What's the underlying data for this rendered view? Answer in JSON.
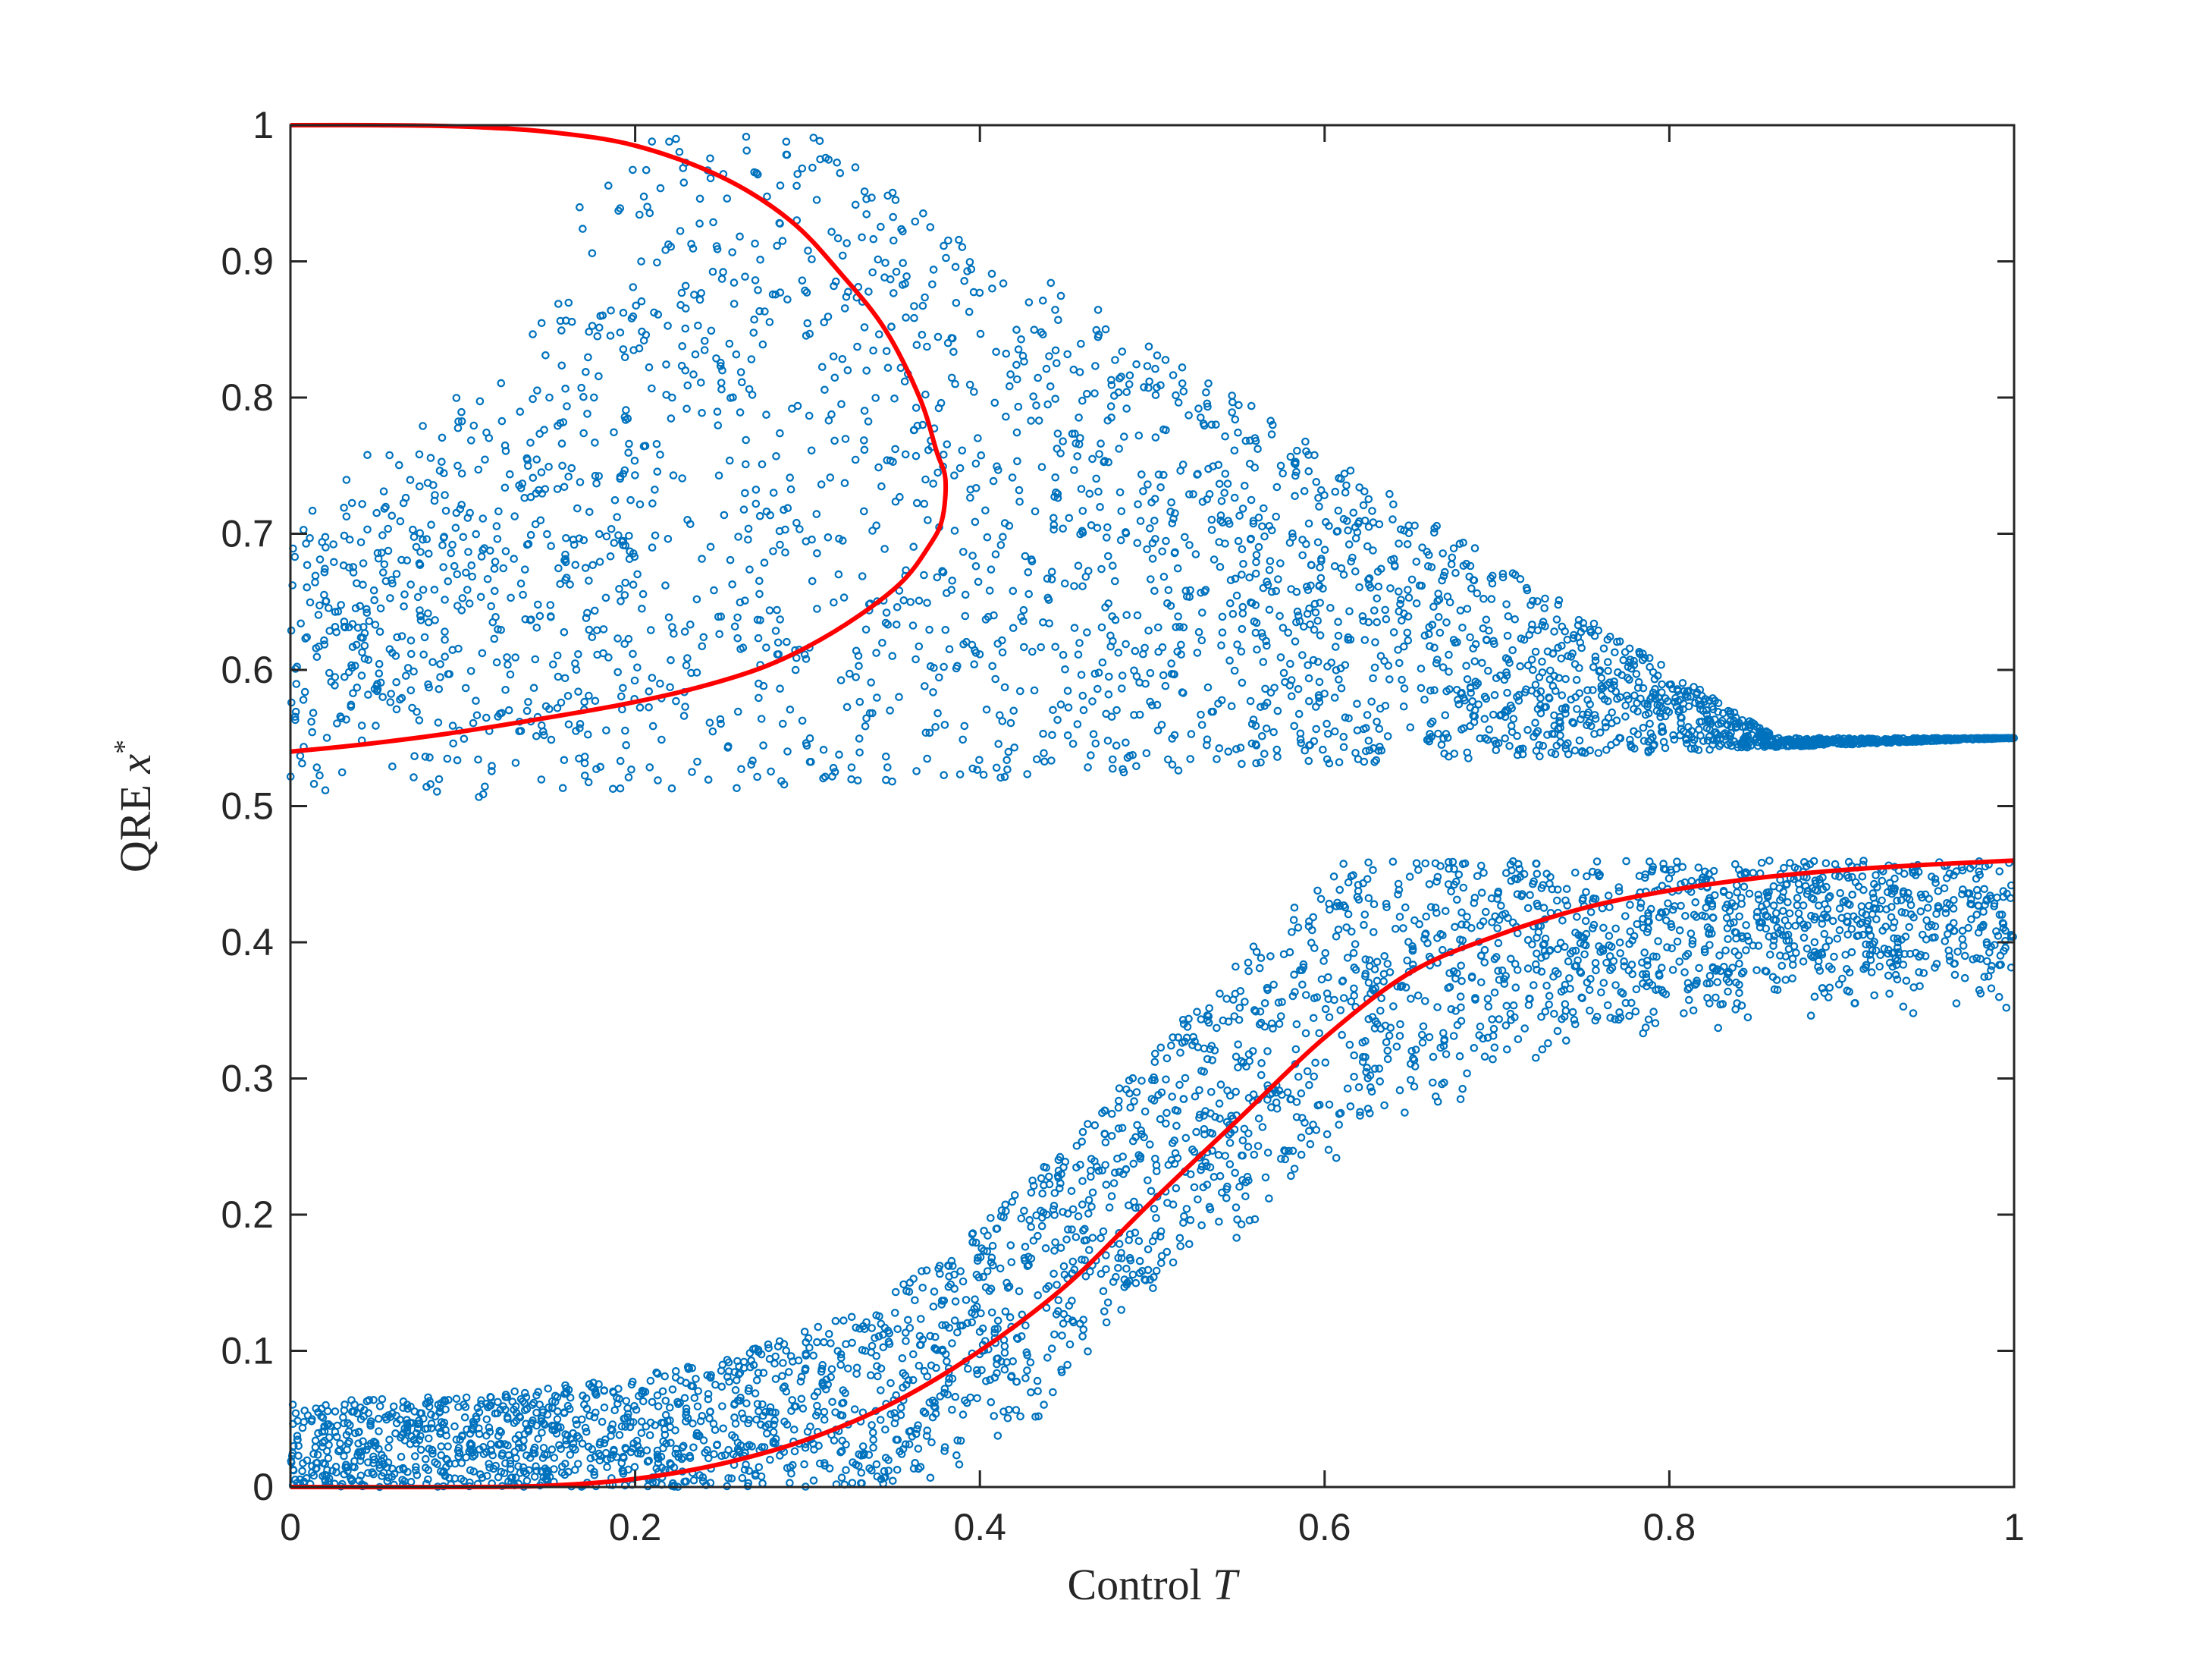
{
  "chart_data": {
    "type": "scatter",
    "xlabel": {
      "text": "Control ",
      "math": "T"
    },
    "ylabel": {
      "text": "QRE ",
      "math": "x",
      "sup": "*"
    },
    "xlim": [
      0,
      1
    ],
    "ylim": [
      0,
      1
    ],
    "x_ticks": [
      0,
      0.2,
      0.4,
      0.6,
      0.8,
      1
    ],
    "x_tick_labels": [
      "0",
      "0.2",
      "0.4",
      "0.6",
      "0.8",
      "1"
    ],
    "y_ticks": [
      0,
      0.1,
      0.2,
      0.3,
      0.4,
      0.5,
      0.6,
      0.7,
      0.8,
      0.9,
      1
    ],
    "y_tick_labels": [
      "0",
      "0.1",
      "0.2",
      "0.3",
      "0.4",
      "0.5",
      "0.6",
      "0.7",
      "0.8",
      "0.9",
      "1"
    ],
    "grid": false,
    "box": true,
    "scatter_color": "#0072BD",
    "curve_color": "#FF0000",
    "scatter_point_count": 6000,
    "curves": [
      {
        "points": [
          [
            0,
            1.0
          ],
          [
            0.05,
            1.0
          ],
          [
            0.1,
            0.999
          ],
          [
            0.15,
            0.995
          ],
          [
            0.2,
            0.985
          ],
          [
            0.25,
            0.962
          ],
          [
            0.29,
            0.93
          ],
          [
            0.32,
            0.89
          ],
          [
            0.345,
            0.85
          ],
          [
            0.365,
            0.8
          ],
          [
            0.375,
            0.76
          ],
          [
            0.38,
            0.74
          ],
          [
            0.378,
            0.71
          ],
          [
            0.37,
            0.69
          ],
          [
            0.355,
            0.665
          ],
          [
            0.33,
            0.64
          ],
          [
            0.3,
            0.617
          ],
          [
            0.27,
            0.6
          ],
          [
            0.23,
            0.585
          ],
          [
            0.19,
            0.574
          ],
          [
            0.14,
            0.563
          ],
          [
            0.09,
            0.553
          ],
          [
            0.04,
            0.545
          ],
          [
            0,
            0.54
          ]
        ]
      },
      {
        "points": [
          [
            0,
            0.0
          ],
          [
            0.1,
            0.0
          ],
          [
            0.15,
            0.001
          ],
          [
            0.2,
            0.006
          ],
          [
            0.25,
            0.017
          ],
          [
            0.3,
            0.035
          ],
          [
            0.35,
            0.062
          ],
          [
            0.4,
            0.1
          ],
          [
            0.45,
            0.148
          ],
          [
            0.5,
            0.21
          ],
          [
            0.55,
            0.27
          ],
          [
            0.6,
            0.33
          ],
          [
            0.65,
            0.378
          ],
          [
            0.7,
            0.405
          ],
          [
            0.75,
            0.425
          ],
          [
            0.8,
            0.438
          ],
          [
            0.85,
            0.447
          ],
          [
            0.9,
            0.453
          ],
          [
            0.95,
            0.457
          ],
          [
            1.0,
            0.46
          ]
        ]
      }
    ]
  }
}
